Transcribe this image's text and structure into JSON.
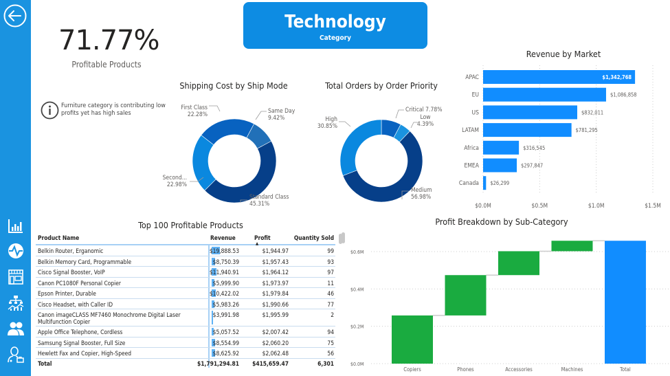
{
  "sidebar": {
    "back_icon": "back-arrow-circle-icon",
    "nav_items": [
      {
        "name": "bar-chart-icon",
        "label": "Overview"
      },
      {
        "name": "pulse-icon",
        "label": "Trends"
      },
      {
        "name": "store-icon",
        "label": "Stores"
      },
      {
        "name": "hierarchy-chart-icon",
        "label": "Breakdown"
      },
      {
        "name": "users-icon",
        "label": "Customers"
      },
      {
        "name": "manager-icon",
        "label": "Managers"
      }
    ]
  },
  "kpi": {
    "value": "71.77%",
    "label": "Profitable Products"
  },
  "category_card": {
    "title": "Technology",
    "subtitle": "Category"
  },
  "info_note": {
    "text": "Furniture category is contributing low profits yet has high sales"
  },
  "colors": {
    "sidebar": "#1a93e0",
    "accent": "#0d8ce3",
    "bar_blue": "#118dff",
    "green": "#1aab40"
  },
  "chart_data": [
    {
      "type": "pie",
      "variant": "donut",
      "title": "Shipping Cost by Ship Mode",
      "slices": [
        {
          "label": "Standard Class",
          "value": 45.31,
          "display": "45.31%",
          "color": "#063f89"
        },
        {
          "label": "Second...",
          "value": 22.98,
          "display": "22.98%",
          "color": "#0a88df"
        },
        {
          "label": "First Class",
          "value": 22.28,
          "display": "22.28%",
          "color": "#0862c0"
        },
        {
          "label": "Same Day",
          "value": 9.42,
          "display": "9.42%",
          "color": "#2170b8"
        }
      ]
    },
    {
      "type": "pie",
      "variant": "donut",
      "title": "Total Orders by Order Priority",
      "slices": [
        {
          "label": "Medium",
          "value": 56.98,
          "display": "56.98%",
          "color": "#063f89"
        },
        {
          "label": "High",
          "value": 30.85,
          "display": "30.85%",
          "color": "#0a88df"
        },
        {
          "label": "Critical",
          "value": 7.78,
          "display": "7.78%",
          "color": "#0862c0"
        },
        {
          "label": "Low",
          "value": 4.39,
          "display": "4.39%",
          "color": "#1a93e0"
        }
      ]
    },
    {
      "type": "bar",
      "orientation": "horizontal",
      "title": "Revenue by Market",
      "categories": [
        "APAC",
        "EU",
        "US",
        "LATAM",
        "Africa",
        "EMEA",
        "Canada"
      ],
      "values": [
        1342768,
        1086858,
        832011,
        781295,
        316545,
        297847,
        26299
      ],
      "data_labels": [
        "$1,342,768",
        "$1,086,858",
        "$832,011",
        "$781,295",
        "$316,545",
        "$297,847",
        "$26,299"
      ],
      "xlim": [
        0,
        1500000
      ],
      "xticks": [
        "$0.0M",
        "$0.5M",
        "$1.0M",
        "$1.5M"
      ],
      "grid": true
    },
    {
      "type": "bar",
      "variant": "waterfall",
      "title": "Profit Breakdown by Sub-Category",
      "categories": [
        "Copiers",
        "Phones",
        "Accessories",
        "Machines",
        "Total"
      ],
      "values": [
        258000,
        216000,
        128000,
        56000,
        658000
      ],
      "is_total": [
        false,
        false,
        false,
        false,
        true
      ],
      "ylim": [
        0,
        650000
      ],
      "yticks": [
        "$0.0M",
        "$0.2M",
        "$0.4M",
        "$0.6M"
      ],
      "ytick_values": [
        0,
        200000,
        400000,
        600000
      ],
      "grid": true
    }
  ],
  "table": {
    "title": "Top 100 Profitable Products",
    "columns": [
      "Product Name",
      "Revenue",
      "Profit",
      "Quantity Sold"
    ],
    "sort_column": "Profit",
    "rows": [
      {
        "name": "Belkin Router, Erganomic",
        "revenue": "$19,888.53",
        "revenue_value": 19888.53,
        "profit": "$1,944.97",
        "qty": "99"
      },
      {
        "name": "Belkin Memory Card, Programmable",
        "revenue": "$8,750.39",
        "revenue_value": 8750.39,
        "profit": "$1,957.43",
        "qty": "93"
      },
      {
        "name": "Cisco Signal Booster, VoIP",
        "revenue": "$11,940.91",
        "revenue_value": 11940.91,
        "profit": "$1,964.12",
        "qty": "97"
      },
      {
        "name": "Canon PC1080F Personal Copier",
        "revenue": "$5,999.90",
        "revenue_value": 5999.9,
        "profit": "$1,973.97",
        "qty": "11"
      },
      {
        "name": "Epson Printer, Durable",
        "revenue": "$10,422.02",
        "revenue_value": 10422.02,
        "profit": "$1,979.84",
        "qty": "46"
      },
      {
        "name": "Cisco Headset, with Caller ID",
        "revenue": "$5,983.26",
        "revenue_value": 5983.26,
        "profit": "$1,990.66",
        "qty": "77"
      },
      {
        "name": "Canon imageCLASS MF7460 Monochrome Digital Laser Multifunction Copier",
        "revenue": "$3,991.98",
        "revenue_value": 3991.98,
        "profit": "$1,995.99",
        "qty": "2"
      },
      {
        "name": "Apple Office Telephone, Cordless",
        "revenue": "$5,057.52",
        "revenue_value": 5057.52,
        "profit": "$2,007.42",
        "qty": "94"
      },
      {
        "name": "Samsung Signal Booster, Full Size",
        "revenue": "$8,554.99",
        "revenue_value": 8554.99,
        "profit": "$2,060.20",
        "qty": "75"
      },
      {
        "name": "Hewlett Fax and Copier, High-Speed",
        "revenue": "$8,625.92",
        "revenue_value": 8625.92,
        "profit": "$2,062.48",
        "qty": "56"
      }
    ],
    "total": {
      "label": "Total",
      "revenue": "$1,791,294.81",
      "profit": "$415,659.47",
      "qty": "6,301"
    }
  }
}
